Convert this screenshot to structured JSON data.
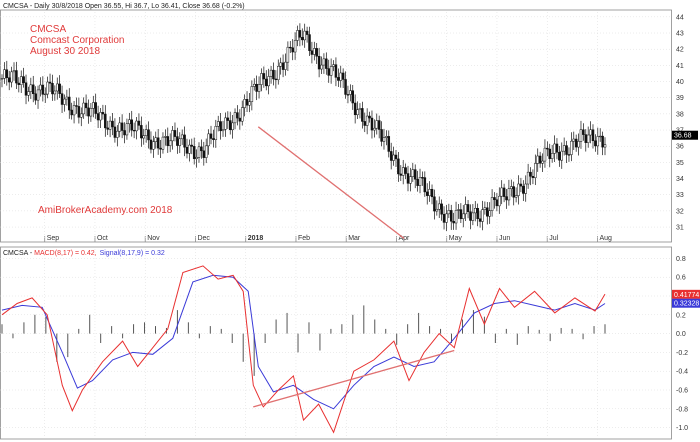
{
  "header": {
    "price_info": "CMCSA - Daily 30/8/2018 Open 36.55, Hi 36.7, Lo 36.41, Close 36.68 (-0.2%)",
    "macd_prefix": "CMCSA - ",
    "macd_label": "MACD(8,17) = 0.42,",
    "signal_label": "Signal(8,17,9) = 0.32"
  },
  "annotation": {
    "ticker": "CMCSA",
    "company": "Comcast Corporation",
    "date": "August 30 2018",
    "watermark": "AmiBrokerAcademy.com  2018"
  },
  "colors": {
    "up": "#ffffff",
    "down": "#111111",
    "macd": "#e83030",
    "signal": "#3a3ad8",
    "hist": "#555555",
    "trendline": "#e07070"
  },
  "price_labels": {
    "last_close": "36.68",
    "macd_value": "0.41774",
    "signal_value": "0.32328"
  },
  "chart_data": [
    {
      "type": "candlestick",
      "title": "",
      "ylim": [
        30.2,
        44.3
      ],
      "y_ticks": [
        31,
        32,
        33,
        34,
        35,
        36,
        37,
        38,
        39,
        40,
        41,
        42,
        43,
        44
      ],
      "x_labels": [
        "Sep",
        "Oct",
        "Nov",
        "Dec",
        "2018",
        "Feb",
        "Mar",
        "Apr",
        "May",
        "Jun",
        "Jul",
        "Aug"
      ],
      "anchor_months": [
        0,
        1,
        2,
        3,
        4,
        5,
        6,
        7,
        8,
        9,
        10,
        11,
        12
      ],
      "anchor_close": [
        40.2,
        39.3,
        37.6,
        36.5,
        35.8,
        39.2,
        42.8,
        38.8,
        34.5,
        31.4,
        32.7,
        35.8,
        36.68
      ],
      "trendline": [
        [
          5.1,
          37.2
        ],
        [
          8.0,
          30.3
        ]
      ]
    },
    {
      "type": "line",
      "title": "",
      "ylim": [
        -1.1,
        0.9
      ],
      "y_ticks": [
        -1.0,
        -0.8,
        -0.6,
        -0.4,
        -0.2,
        0.0,
        0.2,
        0.4,
        0.6,
        0.8
      ],
      "series": [
        {
          "name": "MACD(8,17)",
          "x": [
            0,
            0.3,
            0.6,
            0.9,
            1.2,
            1.4,
            1.6,
            2.0,
            2.4,
            2.7,
            3.0,
            3.3,
            3.6,
            4.0,
            4.3,
            4.6,
            4.8,
            5.0,
            5.2,
            5.5,
            5.8,
            6.0,
            6.3,
            6.6,
            7.0,
            7.4,
            7.8,
            8.1,
            8.4,
            8.7,
            9.0,
            9.3,
            9.6,
            9.9,
            10.2,
            10.6,
            11.0,
            11.4,
            11.8,
            12.0
          ],
          "values": [
            0.2,
            0.32,
            0.38,
            0.2,
            -0.55,
            -0.82,
            -0.6,
            -0.3,
            -0.08,
            -0.35,
            -0.15,
            0.05,
            0.65,
            0.72,
            0.58,
            0.62,
            0.45,
            -0.55,
            -0.78,
            -0.6,
            -0.45,
            -0.92,
            -0.75,
            -1.05,
            -0.4,
            -0.28,
            -0.08,
            -0.5,
            -0.2,
            0.0,
            -0.15,
            0.48,
            0.1,
            0.48,
            0.28,
            0.45,
            0.22,
            0.38,
            0.24,
            0.42
          ]
        },
        {
          "name": "Signal(8,17,9)",
          "x": [
            0,
            0.4,
            0.8,
            1.2,
            1.5,
            1.8,
            2.2,
            2.6,
            3.0,
            3.4,
            3.8,
            4.2,
            4.6,
            4.9,
            5.1,
            5.4,
            5.8,
            6.2,
            6.6,
            7.0,
            7.4,
            7.8,
            8.2,
            8.6,
            9.0,
            9.4,
            9.8,
            10.2,
            10.6,
            11.0,
            11.4,
            11.8,
            12.0
          ],
          "values": [
            0.25,
            0.3,
            0.28,
            -0.2,
            -0.58,
            -0.5,
            -0.28,
            -0.2,
            -0.22,
            -0.05,
            0.55,
            0.62,
            0.6,
            0.45,
            -0.35,
            -0.62,
            -0.55,
            -0.7,
            -0.8,
            -0.55,
            -0.35,
            -0.25,
            -0.35,
            -0.3,
            -0.05,
            0.22,
            0.32,
            0.35,
            0.3,
            0.25,
            0.32,
            0.25,
            0.32
          ]
        }
      ],
      "histogram": [
        0.1,
        -0.05,
        0.12,
        0.2,
        0.18,
        -0.3,
        -0.25,
        0.05,
        0.2,
        -0.1,
        0.08,
        -0.05,
        0.1,
        0.12,
        0.08,
        0.06,
        0.25,
        0.12,
        -0.05,
        0.08,
        0.05,
        -0.1,
        -0.3,
        -0.45,
        -0.1,
        0.15,
        0.22,
        -0.2,
        0.12,
        -0.18,
        0.05,
        0.1,
        0.2,
        0.3,
        0.15,
        0.05,
        -0.12,
        0.1,
        0.22,
        0.08,
        0.05,
        -0.1,
        0.15,
        0.25,
        0.18,
        -0.1,
        0.05,
        -0.12,
        0.08,
        0.04,
        -0.08,
        0.06,
        0.05,
        -0.06,
        0.08,
        0.1
      ],
      "trendline": [
        [
          5.0,
          -0.78
        ],
        [
          9.0,
          -0.18
        ]
      ]
    }
  ]
}
